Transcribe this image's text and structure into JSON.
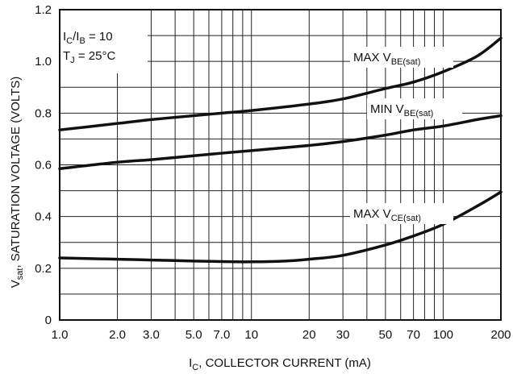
{
  "chart_data": {
    "type": "line",
    "xscale": "log",
    "xlim": [
      1.0,
      200
    ],
    "ylim": [
      0,
      1.2
    ],
    "grid": true,
    "x_tick_labels": [
      "1.0",
      "2.0",
      "3.0",
      "5.0",
      "7.0",
      "10",
      "20",
      "30",
      "50",
      "70",
      "100",
      "200"
    ],
    "x_ticks": [
      1,
      2,
      3,
      5,
      7,
      10,
      20,
      30,
      50,
      70,
      100,
      200
    ],
    "y_tick_labels": [
      "0",
      "0.2",
      "0.4",
      "0.6",
      "0.8",
      "1.0",
      "1.2"
    ],
    "y_ticks": [
      0,
      0.2,
      0.4,
      0.6,
      0.8,
      1.0,
      1.2
    ],
    "xlabel": {
      "main": "I",
      "sub": "C",
      "rest": ", COLLECTOR CURRENT (mA)"
    },
    "ylabel": {
      "main": "V",
      "sub": "sat",
      "rest": ", SATURATION VOLTAGE (VOLTS)"
    },
    "annotation": {
      "line1": {
        "main": "I",
        "sub1": "C",
        "mid": "/I",
        "sub2": "B",
        "rest": " = 10"
      },
      "line2": {
        "main": "T",
        "sub": "J",
        "rest": " = 25°C"
      }
    },
    "series": [
      {
        "name": {
          "main": "MAX V",
          "sub": "BE(sat)"
        },
        "x": [
          1,
          2,
          3,
          5,
          7,
          10,
          20,
          30,
          50,
          70,
          100,
          150,
          200
        ],
        "y": [
          0.735,
          0.76,
          0.775,
          0.79,
          0.8,
          0.81,
          0.835,
          0.855,
          0.895,
          0.92,
          0.96,
          1.02,
          1.09
        ]
      },
      {
        "name": {
          "main": "MIN V",
          "sub": "BE(sat)"
        },
        "x": [
          1,
          2,
          3,
          5,
          7,
          10,
          20,
          30,
          50,
          70,
          100,
          150,
          200
        ],
        "y": [
          0.585,
          0.61,
          0.62,
          0.635,
          0.645,
          0.655,
          0.675,
          0.69,
          0.715,
          0.735,
          0.75,
          0.775,
          0.79
        ]
      },
      {
        "name": {
          "main": "MAX V",
          "sub": "CE(sat)"
        },
        "x": [
          1,
          2,
          3,
          5,
          7,
          10,
          15,
          20,
          30,
          50,
          70,
          100,
          150,
          200
        ],
        "y": [
          0.24,
          0.235,
          0.232,
          0.228,
          0.226,
          0.225,
          0.228,
          0.235,
          0.25,
          0.29,
          0.325,
          0.37,
          0.44,
          0.495
        ]
      }
    ]
  }
}
